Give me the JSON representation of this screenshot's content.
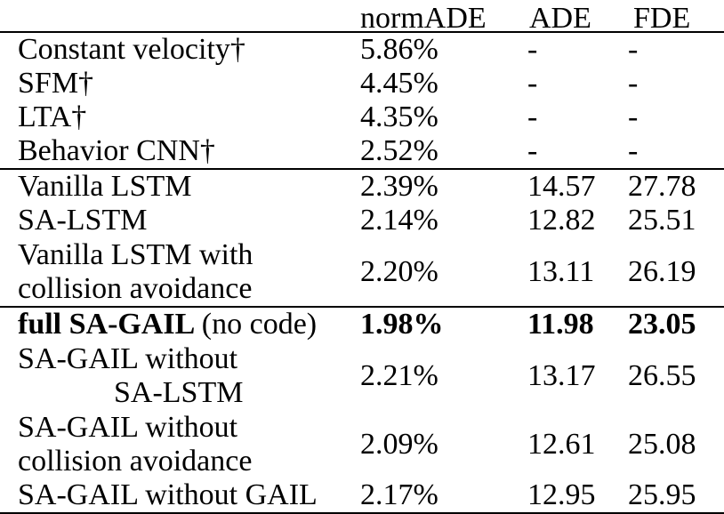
{
  "table": {
    "columns": {
      "method": "",
      "normade": "normADE",
      "ade": "ADE",
      "fde": "FDE"
    },
    "rows": [
      {
        "method": "Constant velocity†",
        "normade": "5.86%",
        "ade": "-",
        "fde": "-"
      },
      {
        "method": "SFM†",
        "normade": "4.45%",
        "ade": "-",
        "fde": "-"
      },
      {
        "method": "LTA†",
        "normade": "4.35%",
        "ade": "-",
        "fde": "-"
      },
      {
        "method": "Behavior CNN†",
        "normade": "2.52%",
        "ade": "-",
        "fde": "-"
      },
      {
        "method": "Vanilla LSTM",
        "normade": "2.39%",
        "ade": "14.57",
        "fde": "27.78"
      },
      {
        "method": "SA-LSTM",
        "normade": "2.14%",
        "ade": "12.82",
        "fde": "25.51"
      },
      {
        "method_line1": "Vanilla LSTM with",
        "method_line2": "collision avoidance",
        "normade": "2.20%",
        "ade": "13.11",
        "fde": "26.19"
      },
      {
        "method_bold": "full SA-GAIL",
        "method_rest": "(no code)",
        "normade": "1.98%",
        "ade": "11.98",
        "fde": "23.05"
      },
      {
        "method_line1": "SA-GAIL without",
        "method_line2": "SA-LSTM",
        "normade": "2.21%",
        "ade": "13.17",
        "fde": "26.55"
      },
      {
        "method_line1": "SA-GAIL without",
        "method_line2": "collision avoidance",
        "normade": "2.09%",
        "ade": "12.61",
        "fde": "25.08"
      },
      {
        "method": "SA-GAIL without GAIL",
        "normade": "2.17%",
        "ade": "12.95",
        "fde": "25.95"
      }
    ],
    "text_color": "#000000",
    "background_color": "#ffffff"
  }
}
